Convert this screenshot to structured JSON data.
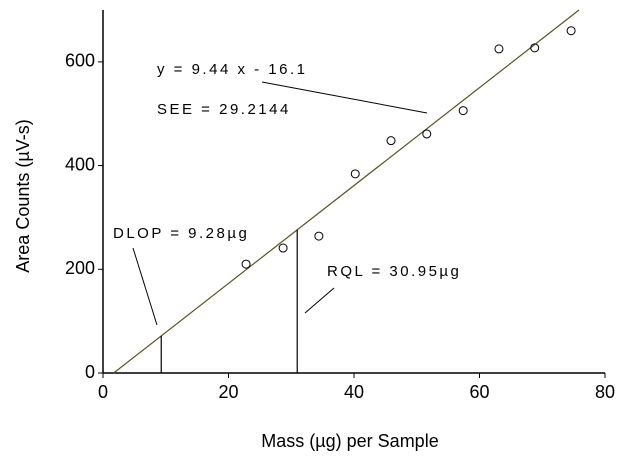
{
  "chart_data": {
    "type": "scatter",
    "x_label": "Mass (µg) per Sample",
    "y_label": "Area Counts (µV-s)",
    "x": [
      22.8,
      28.7,
      34.4,
      40.2,
      45.9,
      51.6,
      57.4,
      63.1,
      68.8,
      74.6
    ],
    "values": [
      210,
      241,
      264,
      384,
      448,
      461,
      506,
      625,
      627,
      660
    ],
    "xlim": [
      0,
      80
    ],
    "ylim": [
      0,
      700
    ],
    "xticks": [
      0,
      20,
      40,
      60,
      80
    ],
    "yticks": [
      0,
      200,
      400,
      600
    ],
    "fit_line": {
      "label": "y = 9.44 x - 16.1",
      "slope": 9.44,
      "intercept": -16.1,
      "color": "#555522"
    },
    "see_label": "SEE = 29.2144",
    "vlines": [
      {
        "label": "DLOP = 9.28µg",
        "value": 9.28
      },
      {
        "label": "RQL = 30.95µg",
        "value": 30.95
      }
    ]
  }
}
